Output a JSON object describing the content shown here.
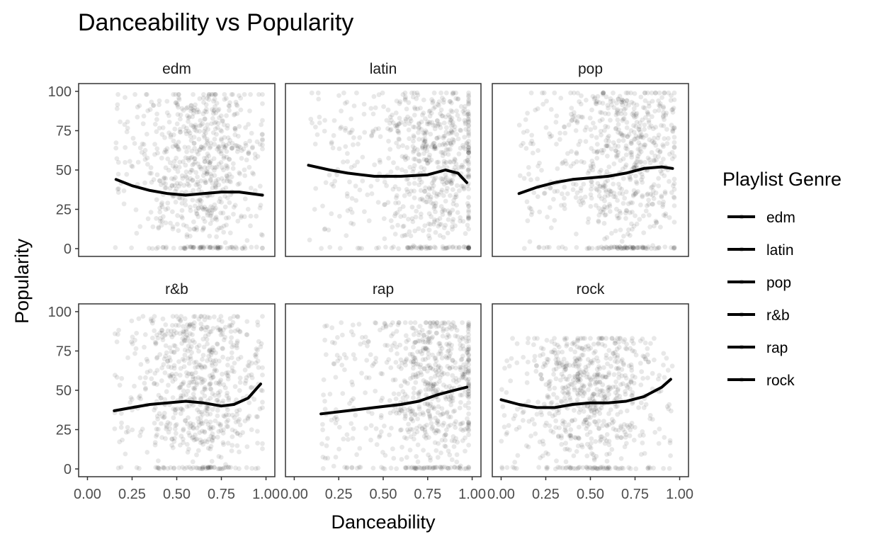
{
  "chart_data": {
    "type": "scatter",
    "title": "Danceability vs Popularity",
    "xlabel": "Danceability",
    "ylabel": "Popularity",
    "xlim": [
      0,
      1
    ],
    "ylim": [
      0,
      100
    ],
    "x_ticks": [
      "0.00",
      "0.25",
      "0.50",
      "0.75",
      "1.00"
    ],
    "y_ticks": [
      "0",
      "25",
      "50",
      "75",
      "100"
    ],
    "grid": false,
    "legend": {
      "title": "Playlist Genre",
      "placement": "right",
      "entries": [
        "edm",
        "latin",
        "pop",
        "r&b",
        "rap",
        "rock"
      ]
    },
    "facets": [
      {
        "name": "edm",
        "x_range": [
          0.15,
          0.98
        ],
        "mode_x": 0.65,
        "upper": 98,
        "smooth": [
          [
            0.16,
            44
          ],
          [
            0.25,
            40
          ],
          [
            0.35,
            37
          ],
          [
            0.45,
            35
          ],
          [
            0.55,
            34
          ],
          [
            0.65,
            35
          ],
          [
            0.75,
            36
          ],
          [
            0.85,
            36
          ],
          [
            0.98,
            34
          ]
        ]
      },
      {
        "name": "latin",
        "x_range": [
          0.08,
          0.98
        ],
        "mode_x": 0.8,
        "upper": 99,
        "smooth": [
          [
            0.08,
            53
          ],
          [
            0.2,
            50
          ],
          [
            0.3,
            48
          ],
          [
            0.45,
            46
          ],
          [
            0.6,
            46
          ],
          [
            0.75,
            47
          ],
          [
            0.85,
            50
          ],
          [
            0.92,
            48
          ],
          [
            0.97,
            42
          ]
        ]
      },
      {
        "name": "pop",
        "x_range": [
          0.1,
          0.97
        ],
        "mode_x": 0.7,
        "upper": 99,
        "smooth": [
          [
            0.1,
            35
          ],
          [
            0.2,
            39
          ],
          [
            0.3,
            42
          ],
          [
            0.4,
            44
          ],
          [
            0.5,
            45
          ],
          [
            0.6,
            46
          ],
          [
            0.7,
            48
          ],
          [
            0.8,
            51
          ],
          [
            0.9,
            52
          ],
          [
            0.96,
            51
          ]
        ]
      },
      {
        "name": "r&b",
        "x_range": [
          0.15,
          0.98
        ],
        "mode_x": 0.65,
        "upper": 97,
        "smooth": [
          [
            0.15,
            37
          ],
          [
            0.25,
            39
          ],
          [
            0.35,
            41
          ],
          [
            0.45,
            42
          ],
          [
            0.55,
            43
          ],
          [
            0.65,
            42
          ],
          [
            0.75,
            40
          ],
          [
            0.82,
            41
          ],
          [
            0.9,
            45
          ],
          [
            0.97,
            54
          ]
        ]
      },
      {
        "name": "rap",
        "x_range": [
          0.15,
          0.98
        ],
        "mode_x": 0.8,
        "upper": 93,
        "smooth": [
          [
            0.15,
            35
          ],
          [
            0.3,
            37
          ],
          [
            0.45,
            39
          ],
          [
            0.6,
            41
          ],
          [
            0.7,
            43
          ],
          [
            0.8,
            47
          ],
          [
            0.9,
            50
          ],
          [
            0.97,
            52
          ]
        ]
      },
      {
        "name": "rock",
        "x_range": [
          0.0,
          0.96
        ],
        "mode_x": 0.5,
        "upper": 83,
        "smooth": [
          [
            0.0,
            44
          ],
          [
            0.1,
            41
          ],
          [
            0.2,
            39
          ],
          [
            0.3,
            39
          ],
          [
            0.4,
            41
          ],
          [
            0.5,
            42
          ],
          [
            0.6,
            42
          ],
          [
            0.7,
            43
          ],
          [
            0.8,
            46
          ],
          [
            0.9,
            52
          ],
          [
            0.95,
            57
          ]
        ]
      }
    ]
  }
}
